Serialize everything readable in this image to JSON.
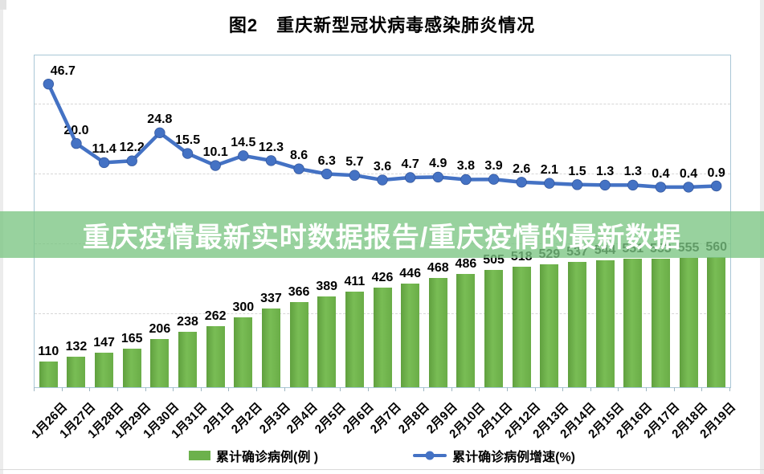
{
  "title": "图2　重庆新型冠状病毒感染肺炎情况",
  "banner": {
    "text": "重庆疫情最新实时数据报告/重庆疫情的最新数据"
  },
  "legend": {
    "bar_label": "累计确诊病例(例 )",
    "line_label": "累计确诊病例增速(%)"
  },
  "colors": {
    "bar": "#6cb14c",
    "line": "#4472c4",
    "banner_overlay": "#7bc583",
    "banner_text": "#ffffff",
    "plot_border": "#a9c7d6",
    "gridline": "#d6d6d6"
  },
  "chart_data": {
    "type": "bar",
    "subtype": "combo bar + line, dual hidden axes",
    "title": "图2　重庆新型冠状病毒感染肺炎情况",
    "categories": [
      "1月26日",
      "1月27日",
      "1月28日",
      "1月29日",
      "1月30日",
      "1月31日",
      "2月1日",
      "2月2日",
      "2月3日",
      "2月4日",
      "2月5日",
      "2月6日",
      "2月7日",
      "2月8日",
      "2月9日",
      "2月10日",
      "2月11日",
      "2月12日",
      "2月13日",
      "2月14日",
      "2月15日",
      "2月16日",
      "2月17日",
      "2月18日",
      "2月19日"
    ],
    "series": [
      {
        "name": "累计确诊病例(例 )",
        "type": "bar",
        "color": "#6cb14c",
        "values": [
          110,
          132,
          147,
          165,
          206,
          238,
          262,
          300,
          337,
          366,
          389,
          411,
          426,
          446,
          468,
          486,
          505,
          518,
          529,
          537,
          544,
          551,
          553,
          555,
          560
        ]
      },
      {
        "name": "累计确诊病例增速(%)",
        "type": "line",
        "color": "#4472c4",
        "values": [
          46.7,
          20.0,
          11.4,
          12.2,
          24.8,
          15.5,
          10.1,
          14.5,
          12.3,
          8.6,
          6.3,
          5.7,
          3.6,
          4.7,
          4.9,
          3.8,
          3.9,
          2.6,
          2.1,
          1.5,
          1.3,
          1.3,
          0.4,
          0.4,
          0.9
        ]
      }
    ],
    "value_labels": "every point labeled; bar labels 529/537/544/551/553 obscured by overlay banner (estimated from growth-rate series)",
    "xlabel": "",
    "ylabel": "",
    "axes_visible": false,
    "grid": "horizontal dashed lines",
    "legend_position": "bottom"
  }
}
